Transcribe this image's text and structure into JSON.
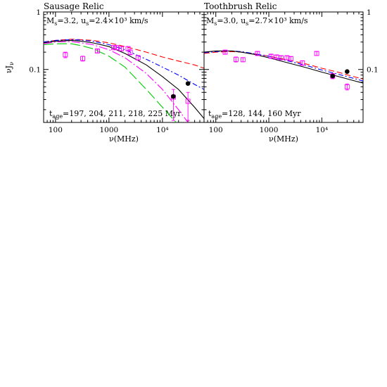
{
  "chart_data": [
    {
      "type": "line",
      "title": "Sausage Relic",
      "params_text": "M_s=3.2, u_s=2.4×10³ km/s",
      "params": {
        "M": "M",
        "M_sub": "s",
        "M_val": "=3.2, u",
        "u_sub": "s",
        "u_val": "=2.4×10³ km/s"
      },
      "age_text": "t_age=197, 204, 211, 218, 225 Myr",
      "age": {
        "t": "t",
        "t_sub": "age",
        "t_val": "=197, 204, 211, 218, 225 Myr"
      },
      "xlabel": "ν(MHz)",
      "ylabel": "νJν",
      "x_scale": "log",
      "y_scale": "log",
      "xlim": [
        60,
        60000
      ],
      "ylim": [
        0.012,
        1
      ],
      "x_ticks": [
        {
          "v": 100,
          "label": "100"
        },
        {
          "v": 1000,
          "label": "1000"
        },
        {
          "v": 10000,
          "label": "10⁴"
        }
      ],
      "y_ticks_left": [
        {
          "v": 1,
          "label": "1"
        },
        {
          "v": 0.1,
          "label": "0.1"
        }
      ],
      "y_ticks_right": [],
      "series": [
        {
          "color": "#ff0000",
          "dash": "dashed",
          "x": [
            60,
            100,
            200,
            300,
            500,
            1000,
            2000,
            5000,
            10000,
            20000,
            40000,
            60000
          ],
          "y": [
            0.3,
            0.32,
            0.335,
            0.33,
            0.32,
            0.29,
            0.25,
            0.2,
            0.165,
            0.14,
            0.12,
            0.105
          ]
        },
        {
          "color": "#0000ff",
          "dash": "dashdot",
          "x": [
            60,
            100,
            200,
            300,
            500,
            1000,
            2000,
            5000,
            10000,
            20000,
            40000,
            60000
          ],
          "y": [
            0.3,
            0.32,
            0.33,
            0.325,
            0.31,
            0.27,
            0.22,
            0.15,
            0.11,
            0.08,
            0.055,
            0.045
          ]
        },
        {
          "color": "#000000",
          "dash": "solid",
          "x": [
            60,
            100,
            200,
            300,
            500,
            1000,
            2000,
            5000,
            10000,
            20000,
            40000,
            60000
          ],
          "y": [
            0.29,
            0.31,
            0.32,
            0.31,
            0.29,
            0.25,
            0.19,
            0.12,
            0.075,
            0.045,
            0.022,
            0.014
          ]
        },
        {
          "color": "#ff00ff",
          "dash": "longdashdot",
          "x": [
            60,
            100,
            200,
            300,
            500,
            1000,
            2000,
            5000,
            10000,
            20000,
            30000
          ],
          "y": [
            0.28,
            0.3,
            0.305,
            0.29,
            0.27,
            0.22,
            0.16,
            0.085,
            0.045,
            0.02,
            0.012
          ]
        },
        {
          "color": "#00cc00",
          "dash": "longdash",
          "x": [
            60,
            100,
            200,
            300,
            500,
            1000,
            2000,
            5000,
            10000,
            18000
          ],
          "y": [
            0.27,
            0.28,
            0.28,
            0.26,
            0.23,
            0.17,
            0.11,
            0.045,
            0.022,
            0.012
          ]
        }
      ],
      "magenta_squares": {
        "color": "#ff00ff",
        "x": [
          153,
          323,
          608,
          1221,
          1382,
          1714,
          2272,
          2500,
          3500,
          16000,
          30000
        ],
        "y": [
          0.18,
          0.155,
          0.21,
          0.24,
          0.24,
          0.23,
          0.23,
          0.2,
          0.16,
          0.033,
          0.028
        ],
        "err_lo": [
          0.02,
          0.015,
          0.015,
          0.02,
          0.02,
          0.02,
          0.02,
          0.02,
          0.015,
          0.02,
          0.015
        ],
        "err_hi": [
          0.02,
          0.015,
          0.015,
          0.02,
          0.02,
          0.02,
          0.02,
          0.02,
          0.015,
          0.012,
          0.012
        ]
      },
      "black_dots": {
        "color": "#000000",
        "x": [
          16000,
          30000
        ],
        "y": [
          0.034,
          0.057
        ]
      }
    },
    {
      "type": "line",
      "title": "Toothbrush Relic",
      "params_text": "M_s=3.0, u_s=2.7×10³ km/s",
      "params": {
        "M": "M",
        "M_sub": "s",
        "M_val": "=3.0, u",
        "u_sub": "s",
        "u_val": "=2.7×10³ km/s"
      },
      "age_text": "t_age=128, 144, 160 Myr",
      "age": {
        "t": "t",
        "t_sub": "age",
        "t_val": "=128, 144, 160 Myr"
      },
      "xlabel": "ν(MHz)",
      "ylabel": "",
      "x_scale": "log",
      "y_scale": "log",
      "xlim": [
        60,
        60000
      ],
      "ylim": [
        0.012,
        1
      ],
      "x_ticks": [
        {
          "v": 100,
          "label": "100"
        },
        {
          "v": 1000,
          "label": "1000"
        },
        {
          "v": 10000,
          "label": "10⁴"
        }
      ],
      "y_ticks_left": [],
      "y_ticks_right": [
        {
          "v": 1,
          "label": "1"
        },
        {
          "v": 0.1,
          "label": "0.1"
        }
      ],
      "series": [
        {
          "color": "#ff0000",
          "dash": "dashed",
          "x": [
            60,
            100,
            200,
            300,
            500,
            1000,
            2000,
            5000,
            10000,
            20000,
            40000,
            60000
          ],
          "y": [
            0.19,
            0.2,
            0.205,
            0.2,
            0.19,
            0.17,
            0.15,
            0.125,
            0.105,
            0.09,
            0.075,
            0.068
          ]
        },
        {
          "color": "#0000ff",
          "dash": "dashdot",
          "x": [
            60,
            100,
            200,
            300,
            500,
            1000,
            2000,
            5000,
            10000,
            20000,
            40000,
            60000
          ],
          "y": [
            0.195,
            0.205,
            0.21,
            0.205,
            0.19,
            0.17,
            0.145,
            0.118,
            0.098,
            0.083,
            0.07,
            0.063
          ]
        },
        {
          "color": "#000000",
          "dash": "solid",
          "x": [
            60,
            100,
            200,
            300,
            500,
            1000,
            2000,
            5000,
            10000,
            20000,
            40000,
            60000
          ],
          "y": [
            0.2,
            0.21,
            0.21,
            0.2,
            0.185,
            0.16,
            0.135,
            0.108,
            0.09,
            0.076,
            0.064,
            0.058
          ]
        }
      ],
      "magenta_squares": {
        "color": "#ff00ff",
        "x": [
          150,
          240,
          325,
          610,
          1100,
          1400,
          1700,
          2200,
          2600,
          4300,
          8000,
          16000,
          30000
        ],
        "y": [
          0.2,
          0.15,
          0.148,
          0.19,
          0.17,
          0.165,
          0.16,
          0.16,
          0.155,
          0.13,
          0.19,
          0.077,
          0.05
        ],
        "err_lo": [
          0.015,
          0.015,
          0.012,
          0.015,
          0.012,
          0.012,
          0.012,
          0.012,
          0.012,
          0.012,
          0.015,
          0.008,
          0.006
        ],
        "err_hi": [
          0.015,
          0.015,
          0.012,
          0.015,
          0.012,
          0.012,
          0.012,
          0.012,
          0.012,
          0.012,
          0.015,
          0.008,
          0.006
        ]
      },
      "black_dots": {
        "color": "#000000",
        "x": [
          16000,
          30000
        ],
        "y": [
          0.077,
          0.092
        ]
      }
    }
  ]
}
